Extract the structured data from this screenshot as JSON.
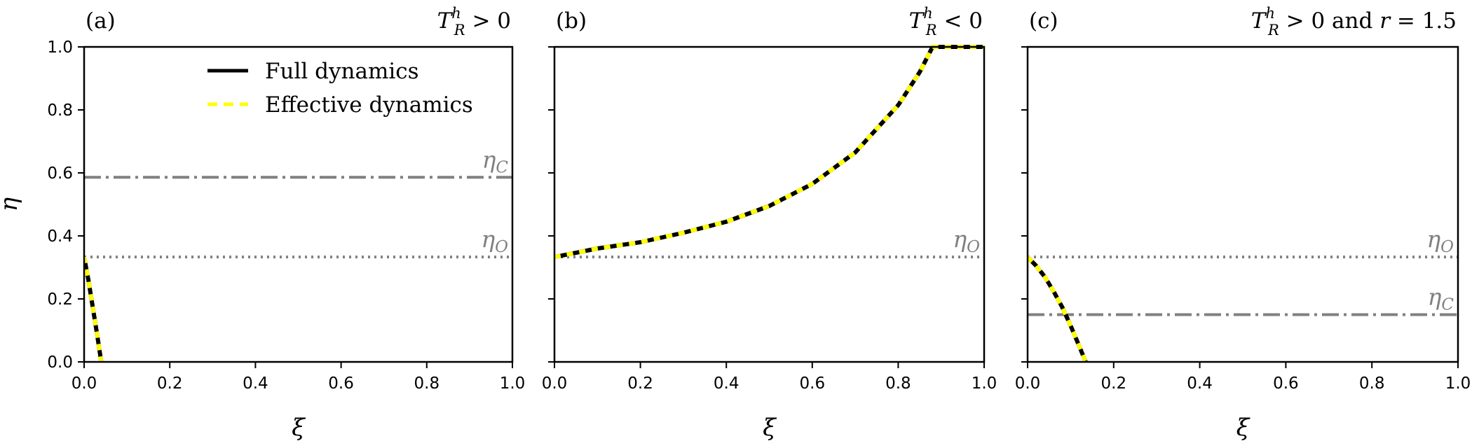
{
  "chart_data": [
    {
      "type": "line",
      "panel_tag": "(a)",
      "condition": "T_R^h > 0",
      "xlabel": "ξ",
      "ylabel": "η",
      "xlim": [
        0,
        1
      ],
      "ylim": [
        0,
        1
      ],
      "xticks": [
        "0.0",
        "0.2",
        "0.4",
        "0.6",
        "0.8",
        "1.0"
      ],
      "yticks": [
        "0.0",
        "0.2",
        "0.4",
        "0.6",
        "0.8",
        "1.0"
      ],
      "grid": false,
      "legend": {
        "position": "top-right",
        "entries": [
          "Full dynamics",
          "Effective dynamics"
        ]
      },
      "ref_lines": [
        {
          "label": "η_C",
          "y": 0.586,
          "style": "dashdot"
        },
        {
          "label": "η_O",
          "y": 0.333,
          "style": "dotted"
        }
      ],
      "series": [
        {
          "name": "Full dynamics",
          "x": [
            0.0,
            0.01,
            0.02,
            0.03,
            0.04
          ],
          "y": [
            0.333,
            0.26,
            0.175,
            0.09,
            0.0
          ]
        },
        {
          "name": "Effective dynamics",
          "x": [
            0.0,
            0.01,
            0.02,
            0.03,
            0.04
          ],
          "y": [
            0.333,
            0.26,
            0.175,
            0.09,
            0.0
          ]
        }
      ]
    },
    {
      "type": "line",
      "panel_tag": "(b)",
      "condition": "T_R^h < 0",
      "xlabel": "ξ",
      "xlim": [
        0,
        1
      ],
      "ylim": [
        0,
        1
      ],
      "xticks": [
        "0.0",
        "0.2",
        "0.4",
        "0.6",
        "0.8",
        "1.0"
      ],
      "grid": false,
      "ref_lines": [
        {
          "label": "η_O",
          "y": 0.333,
          "style": "dotted"
        }
      ],
      "series": [
        {
          "name": "Full dynamics",
          "x": [
            0.0,
            0.1,
            0.2,
            0.3,
            0.4,
            0.5,
            0.6,
            0.7,
            0.8,
            0.85,
            0.88,
            0.9,
            1.0
          ],
          "y": [
            0.333,
            0.36,
            0.38,
            0.41,
            0.445,
            0.495,
            0.565,
            0.665,
            0.815,
            0.92,
            1.0,
            1.0,
            1.0
          ]
        },
        {
          "name": "Effective dynamics",
          "x": [
            0.0,
            0.1,
            0.2,
            0.3,
            0.4,
            0.5,
            0.6,
            0.7,
            0.8,
            0.85,
            0.88,
            0.9,
            1.0
          ],
          "y": [
            0.333,
            0.36,
            0.38,
            0.41,
            0.445,
            0.495,
            0.565,
            0.665,
            0.815,
            0.92,
            1.0,
            1.0,
            1.0
          ]
        }
      ]
    },
    {
      "type": "line",
      "panel_tag": "(c)",
      "condition": "T_R^h > 0 and r = 1.5",
      "xlabel": "ξ",
      "xlim": [
        0,
        1
      ],
      "ylim": [
        0,
        1
      ],
      "xticks": [
        "0.0",
        "0.2",
        "0.4",
        "0.6",
        "0.8",
        "1.0"
      ],
      "grid": false,
      "ref_lines": [
        {
          "label": "η_O",
          "y": 0.333,
          "style": "dotted"
        },
        {
          "label": "η_C",
          "y": 0.15,
          "style": "dashdot"
        }
      ],
      "series": [
        {
          "name": "Full dynamics",
          "x": [
            0.0,
            0.02,
            0.04,
            0.06,
            0.08,
            0.1,
            0.12,
            0.135
          ],
          "y": [
            0.333,
            0.305,
            0.27,
            0.225,
            0.175,
            0.115,
            0.05,
            0.0
          ]
        },
        {
          "name": "Effective dynamics",
          "x": [
            0.0,
            0.02,
            0.04,
            0.06,
            0.08,
            0.1,
            0.12,
            0.135
          ],
          "y": [
            0.333,
            0.305,
            0.27,
            0.225,
            0.175,
            0.115,
            0.05,
            0.0
          ]
        }
      ]
    }
  ]
}
